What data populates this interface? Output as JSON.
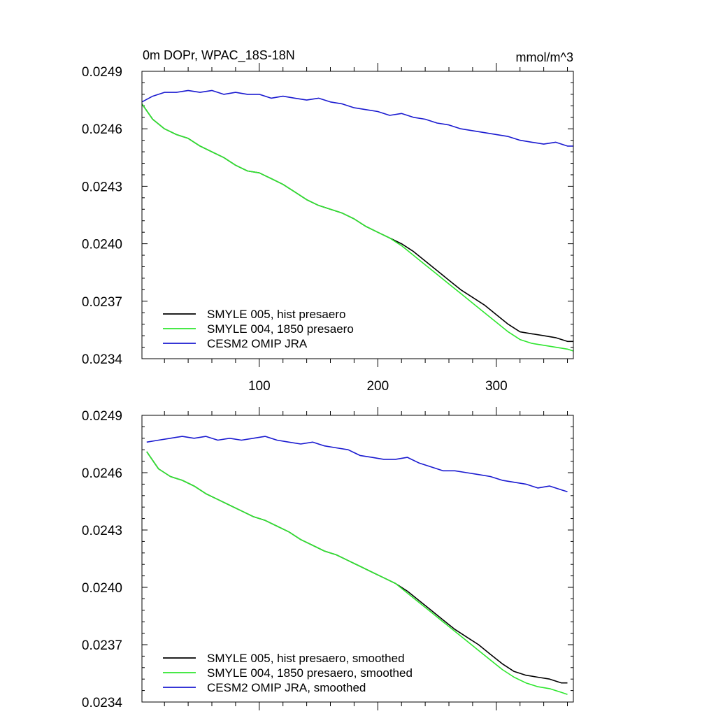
{
  "chart_data": [
    {
      "type": "line",
      "title": "0m DOPr, WPAC_18S-18N",
      "units": "mmol/m^3",
      "xlim": [
        1,
        365
      ],
      "ylim": [
        0.0234,
        0.0249
      ],
      "yticks": [
        "0.0249",
        "0.0246",
        "0.0243",
        "0.0240",
        "0.0237",
        "0.0234"
      ],
      "xticks": [
        100,
        200,
        300
      ],
      "xtick_labels": [
        "100",
        "200",
        "300"
      ],
      "legend_position": "bottom-left",
      "series": [
        {
          "name": "SMYLE 005, hist presaero",
          "color": "#000000",
          "x": [
            1,
            10,
            20,
            30,
            40,
            50,
            60,
            70,
            80,
            90,
            100,
            110,
            120,
            130,
            140,
            150,
            160,
            170,
            180,
            190,
            200,
            210,
            220,
            230,
            240,
            250,
            260,
            270,
            280,
            290,
            300,
            310,
            320,
            330,
            340,
            350,
            360,
            365
          ],
          "y": [
            0.02473,
            0.02465,
            0.0246,
            0.02457,
            0.02455,
            0.02451,
            0.02448,
            0.02445,
            0.02441,
            0.02438,
            0.02437,
            0.02434,
            0.02431,
            0.02427,
            0.02423,
            0.0242,
            0.02418,
            0.02416,
            0.02413,
            0.02409,
            0.02406,
            0.02403,
            0.024,
            0.02396,
            0.02391,
            0.02386,
            0.02381,
            0.02376,
            0.02372,
            0.02368,
            0.02363,
            0.02358,
            0.02354,
            0.02353,
            0.02352,
            0.02351,
            0.02349,
            0.02349
          ]
        },
        {
          "name": "SMYLE 004, 1850 presaero",
          "color": "#2ee62e",
          "x": [
            1,
            10,
            20,
            30,
            40,
            50,
            60,
            70,
            80,
            90,
            100,
            110,
            120,
            130,
            140,
            150,
            160,
            170,
            180,
            190,
            200,
            210,
            220,
            230,
            240,
            250,
            260,
            270,
            280,
            290,
            300,
            310,
            320,
            330,
            340,
            350,
            360,
            365
          ],
          "y": [
            0.02473,
            0.02465,
            0.0246,
            0.02457,
            0.02455,
            0.02451,
            0.02448,
            0.02445,
            0.02441,
            0.02438,
            0.02437,
            0.02434,
            0.02431,
            0.02427,
            0.02423,
            0.0242,
            0.02418,
            0.02416,
            0.02413,
            0.02409,
            0.02406,
            0.02403,
            0.02399,
            0.02394,
            0.02389,
            0.02384,
            0.02379,
            0.02374,
            0.02369,
            0.02364,
            0.02359,
            0.02354,
            0.0235,
            0.02348,
            0.02347,
            0.02346,
            0.02345,
            0.02344
          ]
        },
        {
          "name": "CESM2 OMIP JRA",
          "color": "#1a1ad0",
          "x": [
            1,
            10,
            20,
            30,
            40,
            50,
            60,
            70,
            80,
            90,
            100,
            110,
            120,
            130,
            140,
            150,
            160,
            170,
            180,
            190,
            200,
            210,
            220,
            230,
            240,
            250,
            260,
            270,
            280,
            290,
            300,
            310,
            320,
            330,
            340,
            350,
            360,
            365
          ],
          "y": [
            0.02474,
            0.02477,
            0.02479,
            0.02479,
            0.0248,
            0.02479,
            0.0248,
            0.02478,
            0.02479,
            0.02478,
            0.02478,
            0.02476,
            0.02477,
            0.02476,
            0.02475,
            0.02476,
            0.02474,
            0.02473,
            0.02471,
            0.0247,
            0.02469,
            0.02467,
            0.02468,
            0.02466,
            0.02465,
            0.02463,
            0.02462,
            0.0246,
            0.02459,
            0.02458,
            0.02457,
            0.02456,
            0.02454,
            0.02453,
            0.02452,
            0.02453,
            0.02451,
            0.02451
          ]
        }
      ]
    },
    {
      "type": "line",
      "title": "",
      "units": "",
      "xlim": [
        1,
        365
      ],
      "ylim": [
        0.0234,
        0.0249
      ],
      "yticks": [
        "0.0249",
        "0.0246",
        "0.0243",
        "0.0240",
        "0.0237",
        "0.0234"
      ],
      "xticks": [
        100,
        200,
        300
      ],
      "xtick_labels": [
        "",
        "",
        ""
      ],
      "legend_position": "bottom-left",
      "series": [
        {
          "name": "SMYLE 005, hist presaero, smoothed",
          "color": "#000000",
          "x": [
            5,
            15,
            25,
            35,
            45,
            55,
            65,
            75,
            85,
            95,
            105,
            115,
            125,
            135,
            145,
            155,
            165,
            175,
            185,
            195,
            205,
            215,
            225,
            235,
            245,
            255,
            265,
            275,
            285,
            295,
            305,
            315,
            325,
            335,
            345,
            355,
            360
          ],
          "y": [
            0.02471,
            0.02462,
            0.02458,
            0.02456,
            0.02453,
            0.02449,
            0.02446,
            0.02443,
            0.0244,
            0.02437,
            0.02435,
            0.02432,
            0.02429,
            0.02425,
            0.02422,
            0.02419,
            0.02417,
            0.02414,
            0.02411,
            0.02408,
            0.02405,
            0.02402,
            0.02398,
            0.02393,
            0.02388,
            0.02383,
            0.02378,
            0.02374,
            0.0237,
            0.02365,
            0.0236,
            0.02356,
            0.02354,
            0.02353,
            0.02352,
            0.0235,
            0.0235
          ]
        },
        {
          "name": "SMYLE 004, 1850 presaero, smoothed",
          "color": "#2ee62e",
          "x": [
            5,
            15,
            25,
            35,
            45,
            55,
            65,
            75,
            85,
            95,
            105,
            115,
            125,
            135,
            145,
            155,
            165,
            175,
            185,
            195,
            205,
            215,
            225,
            235,
            245,
            255,
            265,
            275,
            285,
            295,
            305,
            315,
            325,
            335,
            345,
            355,
            360
          ],
          "y": [
            0.02471,
            0.02462,
            0.02458,
            0.02456,
            0.02453,
            0.02449,
            0.02446,
            0.02443,
            0.0244,
            0.02437,
            0.02435,
            0.02432,
            0.02429,
            0.02425,
            0.02422,
            0.02419,
            0.02417,
            0.02414,
            0.02411,
            0.02408,
            0.02405,
            0.02402,
            0.02397,
            0.02392,
            0.02387,
            0.02382,
            0.02377,
            0.02372,
            0.02367,
            0.02362,
            0.02357,
            0.02353,
            0.0235,
            0.02348,
            0.02347,
            0.02345,
            0.02344
          ]
        },
        {
          "name": "CESM2 OMIP JRA, smoothed",
          "color": "#1a1ad0",
          "x": [
            5,
            15,
            25,
            35,
            45,
            55,
            65,
            75,
            85,
            95,
            105,
            115,
            125,
            135,
            145,
            155,
            165,
            175,
            185,
            195,
            205,
            215,
            225,
            235,
            245,
            255,
            265,
            275,
            285,
            295,
            305,
            315,
            325,
            335,
            345,
            355,
            360
          ],
          "y": [
            0.02476,
            0.02477,
            0.02478,
            0.02479,
            0.02478,
            0.02479,
            0.02477,
            0.02478,
            0.02477,
            0.02478,
            0.02479,
            0.02477,
            0.02476,
            0.02475,
            0.02476,
            0.02474,
            0.02473,
            0.02472,
            0.02469,
            0.02468,
            0.02467,
            0.02467,
            0.02468,
            0.02465,
            0.02463,
            0.02461,
            0.02461,
            0.0246,
            0.02459,
            0.02458,
            0.02456,
            0.02455,
            0.02454,
            0.02452,
            0.02453,
            0.02451,
            0.0245
          ]
        }
      ]
    }
  ]
}
